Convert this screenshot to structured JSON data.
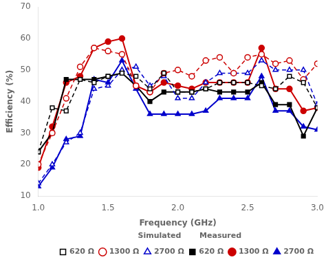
{
  "chart_data": {
    "type": "line",
    "x": [
      1.0,
      1.1,
      1.2,
      1.3,
      1.4,
      1.5,
      1.6,
      1.7,
      1.8,
      1.9,
      2.0,
      2.1,
      2.2,
      2.3,
      2.4,
      2.5,
      2.6,
      2.7,
      2.8,
      2.9,
      3.0
    ],
    "series": [
      {
        "name": "620 Ω",
        "color": "#000000",
        "line_style": "dashed",
        "marker": "square",
        "values": [
          24,
          38,
          37,
          47,
          46,
          48,
          49,
          48,
          44,
          49,
          43,
          43,
          44,
          46,
          46,
          46,
          45,
          44,
          48,
          46,
          38
        ]
      },
      {
        "name": "1300 Ω",
        "color": "#cc0000",
        "line_style": "dashed",
        "marker": "circle",
        "values": [
          20,
          30,
          41,
          51,
          57,
          56,
          55,
          45,
          43,
          49,
          50,
          48,
          53,
          54,
          49,
          54,
          55,
          52,
          53,
          47,
          52
        ]
      },
      {
        "name": "2700 Ω",
        "color": "#0000cc",
        "line_style": "dashed",
        "marker": "triangle",
        "values": [
          14,
          20,
          27,
          30,
          44,
          45,
          50,
          51,
          45,
          48,
          41,
          41,
          46,
          49,
          49,
          49,
          53,
          50,
          50,
          50,
          39
        ]
      },
      {
        "name": "620 Ω",
        "color": "#000000",
        "line_style": "solid",
        "marker": "square",
        "values": [
          24,
          30,
          47,
          47,
          47,
          48,
          49,
          45,
          40,
          43,
          43,
          43,
          44,
          43,
          43,
          43,
          46,
          39,
          39,
          29,
          38
        ]
      },
      {
        "name": "1300 Ω",
        "color": "#cc0000",
        "line_style": "solid",
        "marker": "circle",
        "values": [
          19,
          32,
          46,
          48,
          57,
          59,
          60,
          45,
          43,
          46,
          45,
          44,
          46,
          46,
          46,
          46,
          57,
          44,
          44,
          37,
          38
        ]
      },
      {
        "name": "2700 Ω",
        "color": "#0000cc",
        "line_style": "solid",
        "marker": "triangle",
        "values": [
          13,
          19,
          28,
          29,
          47,
          46,
          53,
          44,
          36,
          36,
          36,
          36,
          37,
          41,
          41,
          41,
          48,
          37,
          37,
          32,
          31
        ]
      }
    ],
    "xlabel": "Frequency (GHz)",
    "ylabel": "Efficiency (%)",
    "xlim": [
      1.0,
      3.0
    ],
    "ylim": [
      10,
      70
    ],
    "xticks": [
      {
        "value": 1.0,
        "label": "1.0"
      },
      1.5,
      {
        "value": 2.0,
        "label": "2.0"
      },
      2.5,
      {
        "value": 3.0,
        "label": "3.0"
      }
    ],
    "yticks": [
      10,
      20,
      30,
      40,
      50,
      60,
      70
    ],
    "legend_title": "Simulated       Measured",
    "legend": "lower right",
    "grid": false
  }
}
